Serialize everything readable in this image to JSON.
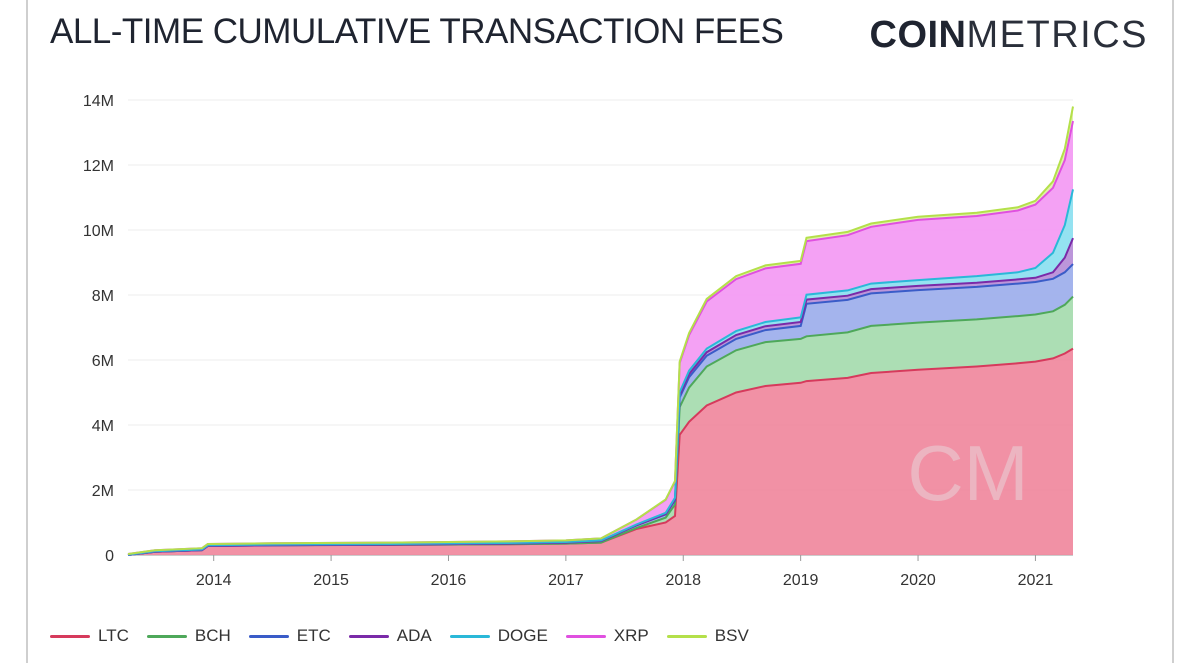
{
  "header": {
    "title": "ALL-TIME CUMULATIVE TRANSACTION FEES",
    "brand_strong": "COIN",
    "brand_light": "METRICS"
  },
  "chart_data": {
    "type": "area",
    "stacked": true,
    "title": "ALL-TIME CUMULATIVE TRANSACTION FEES",
    "xlabel": "",
    "ylabel": "",
    "xlim": [
      2013.27,
      2021.32
    ],
    "ylim": [
      0,
      14000000
    ],
    "x_ticks": [
      2014,
      2015,
      2016,
      2017,
      2018,
      2019,
      2020,
      2021
    ],
    "x_tick_labels": [
      "2014",
      "2015",
      "2016",
      "2017",
      "2018",
      "2019",
      "2020",
      "2021"
    ],
    "y_ticks": [
      0,
      2000000,
      4000000,
      6000000,
      8000000,
      10000000,
      12000000,
      14000000
    ],
    "y_tick_labels": [
      "0",
      "2M",
      "4M",
      "6M",
      "8M",
      "10M",
      "12M",
      "14M"
    ],
    "grid": true,
    "legend_position": "bottom-left",
    "x": [
      2013.27,
      2013.5,
      2013.9,
      2013.95,
      2014.5,
      2015.5,
      2016.5,
      2017.0,
      2017.3,
      2017.6,
      2017.85,
      2017.93,
      2017.97,
      2018.05,
      2018.2,
      2018.45,
      2018.7,
      2019.0,
      2019.05,
      2019.4,
      2019.6,
      2020.0,
      2020.5,
      2020.85,
      2021.0,
      2021.15,
      2021.25,
      2021.32
    ],
    "series": [
      {
        "name": "LTC",
        "color": "#d63a5c",
        "fill": "#f08ba0",
        "values": [
          0,
          100000,
          150000,
          280000,
          300000,
          310000,
          330000,
          350000,
          380000,
          800000,
          1000000,
          1200000,
          3700000,
          4100000,
          4600000,
          5000000,
          5200000,
          5300000,
          5350000,
          5450000,
          5600000,
          5700000,
          5800000,
          5900000,
          5950000,
          6050000,
          6200000,
          6350000
        ]
      },
      {
        "name": "BCH",
        "color": "#4ea85a",
        "fill": "#a8dcb0",
        "values": [
          0,
          0,
          0,
          0,
          0,
          0,
          0,
          0,
          0,
          30000,
          150000,
          350000,
          850000,
          1050000,
          1200000,
          1300000,
          1350000,
          1350000,
          1380000,
          1400000,
          1450000,
          1450000,
          1450000,
          1450000,
          1450000,
          1450000,
          1500000,
          1600000
        ]
      },
      {
        "name": "ETC",
        "color": "#3a5cc8",
        "fill": "#9fb0ec",
        "values": [
          0,
          0,
          0,
          0,
          0,
          10000,
          20000,
          30000,
          50000,
          80000,
          100000,
          130000,
          300000,
          320000,
          330000,
          350000,
          370000,
          400000,
          1000000,
          1000000,
          1000000,
          1000000,
          1000000,
          1000000,
          1000000,
          1000000,
          1000000,
          1000000
        ]
      },
      {
        "name": "ADA",
        "color": "#7a2aa8",
        "fill": "#b890d8",
        "values": [
          0,
          0,
          0,
          0,
          0,
          0,
          0,
          0,
          0,
          0,
          10000,
          30000,
          80000,
          100000,
          110000,
          120000,
          120000,
          120000,
          130000,
          130000,
          130000,
          130000,
          130000,
          130000,
          130000,
          200000,
          450000,
          800000
        ]
      },
      {
        "name": "DOGE",
        "color": "#2ab8d8",
        "fill": "#8ee0f0",
        "values": [
          10000,
          15000,
          20000,
          20000,
          20000,
          20000,
          20000,
          20000,
          20000,
          30000,
          40000,
          50000,
          80000,
          100000,
          110000,
          120000,
          130000,
          140000,
          150000,
          160000,
          170000,
          180000,
          200000,
          220000,
          300000,
          600000,
          1000000,
          1500000
        ]
      },
      {
        "name": "XRP",
        "color": "#e050e0",
        "fill": "#f39cf3",
        "values": [
          20000,
          30000,
          40000,
          40000,
          40000,
          40000,
          50000,
          50000,
          60000,
          150000,
          400000,
          500000,
          900000,
          1100000,
          1450000,
          1600000,
          1650000,
          1650000,
          1650000,
          1700000,
          1750000,
          1850000,
          1850000,
          1900000,
          1950000,
          2000000,
          2000000,
          2100000
        ]
      },
      {
        "name": "BSV",
        "color": "#b4e04a",
        "fill": "#dff0a8",
        "values": [
          0,
          0,
          0,
          0,
          0,
          0,
          0,
          0,
          0,
          0,
          10000,
          20000,
          40000,
          60000,
          80000,
          90000,
          90000,
          90000,
          100000,
          100000,
          100000,
          100000,
          100000,
          100000,
          120000,
          200000,
          350000,
          450000
        ]
      }
    ]
  }
}
